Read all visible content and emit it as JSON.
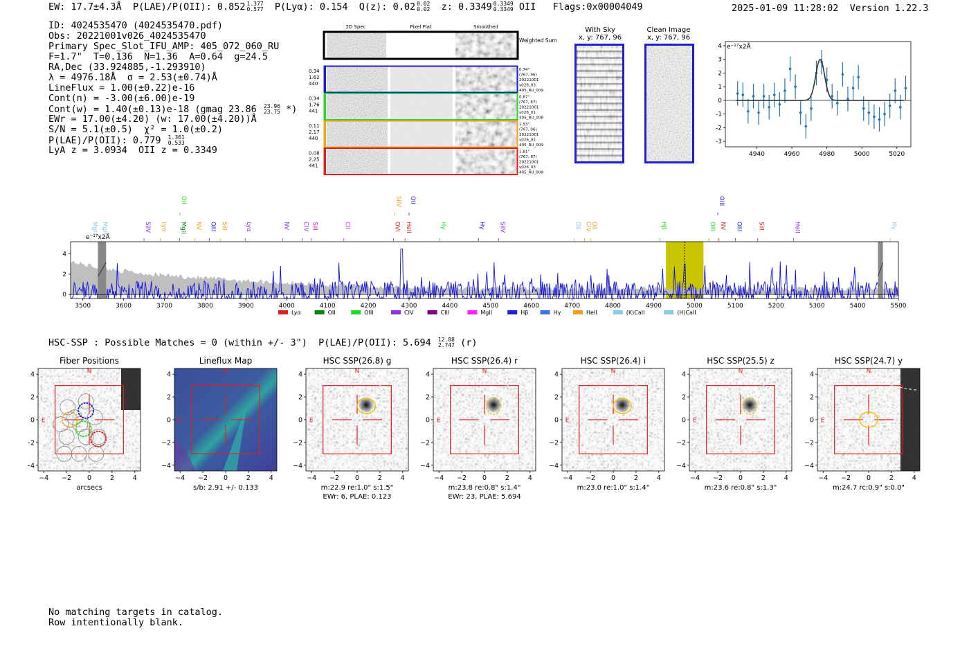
{
  "header": {
    "ew": "EW: 17.7±4.3Å",
    "plae_label": "P(LAE)/P(OII): 0.852",
    "plae_hi": "1.377",
    "plae_lo": "0.577",
    "plya": "P(Lyα): 0.154",
    "qz_label": "Q(z): 0.02",
    "qz_hi": "0.02",
    "qz_lo": "0.02",
    "z_label": "z: 0.3349",
    "z_hi": "0.3349",
    "z_lo": "0.3349",
    "z_line": "OII",
    "flags": "Flags:0x00004049",
    "datetime": "2025-01-09 11:28:02",
    "version": "Version 1.22.3"
  },
  "info": {
    "id": "ID: 4024535470 (4024535470.pdf)",
    "obs": "Obs: 20221001v026_4024535470",
    "primary": "Primary Spec_Slot_IFU_AMP: 405_072_060_RU",
    "params": "F=1.7\"  T=0.136  N=1.36  A=0.64  g=24.5",
    "radec": "RA,Dec (33.924885,-1.293910)",
    "lambda": "λ = 4976.18Å  σ = 2.53(±0.74)Å",
    "lineflux": "LineFlux = 1.00(±0.22)e-16",
    "contn": "Cont(n) = -3.00(±6.00)e-19",
    "contw": "Cont(w) = 1.40(±0.13)e-18 (gmag 23.86",
    "contw_hi": "23.96",
    "contw_lo": "23.75",
    "contw_end": "*)",
    "ewr": "EWr = 17.00(±4.20) (w: 17.00(±4.20))Å",
    "sn": "S/N = 5.1(±0.5)  χ² = 1.0(±0.2)",
    "plae": "P(LAE)/P(OII): 0.779",
    "plae_hi": "1.361",
    "plae_lo": "0.533",
    "lya_z": "LyA z = 3.0934  OII z = 0.3349"
  },
  "cutouts": {
    "col_labels": [
      "2D Spec",
      "Pixel Flat",
      "Smoothed"
    ],
    "weighted_label": "Weighted Sum",
    "rows": [
      {
        "left": [
          "0.34",
          "1.62",
          "440"
        ],
        "right": [
          "0.74\"",
          "(767, 96)",
          "20221001",
          "v026_03",
          "405_RU_009"
        ],
        "color": "#1f1fd0"
      },
      {
        "left": [
          "0.34",
          "1.76",
          "441"
        ],
        "right": [
          "0.87\"",
          "(767, 87)",
          "20221001",
          "v026_01",
          "405_RU_008"
        ],
        "color": "#2ad82a"
      },
      {
        "left": [
          "0.11",
          "2.17",
          "440"
        ],
        "right": [
          "1.53\"",
          "(767, 96)",
          "20221001",
          "v026_02",
          "405_RU_009"
        ],
        "color": "#f0a020"
      },
      {
        "left": [
          "0.08",
          "2.25",
          "441"
        ],
        "right": [
          "1.81\"",
          "(767, 87)",
          "20221001",
          "v026_03",
          "405_RU_008"
        ],
        "color": "#e02020"
      }
    ],
    "with_sky": {
      "title": "With Sky",
      "coords": "x, y: 767, 96"
    },
    "clean": {
      "title": "Clean Image",
      "coords": "x, y: 767, 96"
    }
  },
  "zoom_chart_data": {
    "type": "scatter",
    "unit_label": "e⁻¹⁷x2Å",
    "xlim": [
      4922,
      5028
    ],
    "ylim": [
      -3.4,
      4.3
    ],
    "xticks": [
      "4940",
      "4960",
      "4980",
      "5000",
      "5020"
    ],
    "yticks": [
      "4",
      "3",
      "2",
      "1",
      "0",
      "-1",
      "-2",
      "-3"
    ],
    "x": [
      4929,
      4932,
      4935,
      4938,
      4941,
      4944,
      4947,
      4950,
      4953,
      4956,
      4959,
      4962,
      4965,
      4968,
      4971,
      4974,
      4977,
      4980,
      4983,
      4986,
      4989,
      4992,
      4995,
      4998,
      5001,
      5004,
      5007,
      5010,
      5013,
      5016,
      5019,
      5022,
      5025
    ],
    "y": [
      0.5,
      0.4,
      -0.8,
      0.3,
      -0.9,
      0.3,
      -0.5,
      0.4,
      -0.3,
      0.7,
      2.3,
      1.0,
      -0.9,
      -1.9,
      -0.6,
      2.0,
      2.8,
      1.5,
      0.3,
      -0.2,
      1.9,
      0.1,
      0.9,
      1.7,
      -0.6,
      -0.9,
      -1.2,
      -1.4,
      -1.0,
      -0.4,
      0.7,
      -0.5,
      0.9
    ],
    "err": [
      0.9,
      0.9,
      0.9,
      0.9,
      0.9,
      0.9,
      0.9,
      0.9,
      0.9,
      0.9,
      0.9,
      0.9,
      0.9,
      0.9,
      0.9,
      0.9,
      0.9,
      0.9,
      0.9,
      0.9,
      0.9,
      0.9,
      0.9,
      0.9,
      0.9,
      0.9,
      0.9,
      0.9,
      0.9,
      0.9,
      0.9,
      0.9,
      0.9
    ],
    "fit": {
      "center": 4976.2,
      "sigma": 2.53,
      "amp": 3.0
    }
  },
  "spectrum_chart_data": {
    "type": "line",
    "unit_label": "e⁻¹⁷x2Å",
    "xlim": [
      3470,
      5500
    ],
    "ylim": [
      -0.4,
      5.2
    ],
    "xticks": [
      "3500",
      "3600",
      "3700",
      "3800",
      "3900",
      "4000",
      "4100",
      "4200",
      "4300",
      "4400",
      "4500",
      "4600",
      "4700",
      "4800",
      "4900",
      "5000",
      "5100",
      "5200",
      "5300",
      "5400",
      "5500"
    ],
    "yticks": [
      "4",
      "2",
      "0"
    ],
    "highlight": [
      4930,
      5022
    ],
    "line_at": 4976,
    "masked": [
      [
        3537,
        3557
      ],
      [
        5450,
        5462
      ]
    ],
    "peak_at": 4282,
    "line_labels": [
      {
        "text": "MgII",
        "w": 3520,
        "c": "#8cc8e8",
        "row": 1
      },
      {
        "text": "MgII",
        "w": 3545,
        "c": "#8cc8e8",
        "row": 1
      },
      {
        "text": "SiIV",
        "w": 3650,
        "c": "#9030e0",
        "row": 1
      },
      {
        "text": "Lyα",
        "w": 3690,
        "c": "#f0a020",
        "row": 1
      },
      {
        "text": "OII",
        "w": 3738,
        "c": "#2ad82a",
        "row": 0
      },
      {
        "text": "MgII",
        "w": 3737,
        "c": "#108010",
        "row": 1
      },
      {
        "text": "NV",
        "w": 3775,
        "c": "#f0a020",
        "row": 1
      },
      {
        "text": "OIII",
        "w": 3810,
        "c": "#1f1fd0",
        "row": 1
      },
      {
        "text": "SiII",
        "w": 3838,
        "c": "#f0a020",
        "row": 1
      },
      {
        "text": "Lyα",
        "w": 3898,
        "c": "#9030e0",
        "row": 1
      },
      {
        "text": "NV",
        "w": 3990,
        "c": "#9030e0",
        "row": 1
      },
      {
        "text": "CIV",
        "w": 4038,
        "c": "#9030e0",
        "row": 1
      },
      {
        "text": "SiII",
        "w": 4060,
        "c": "#d020d0",
        "row": 1
      },
      {
        "text": "CII",
        "w": 4140,
        "c": "#d020d0",
        "row": 1
      },
      {
        "text": "SiIV",
        "w": 4265,
        "c": "#f0a020",
        "row": 0
      },
      {
        "text": "OVI",
        "w": 4262,
        "c": "#e02020",
        "row": 1
      },
      {
        "text": "OII",
        "w": 4300,
        "c": "#1f1fd0",
        "row": 0
      },
      {
        "text": "HeII",
        "w": 4290,
        "c": "#e02020",
        "row": 1
      },
      {
        "text": "Hγ",
        "w": 4375,
        "c": "#2ad82a",
        "row": 1
      },
      {
        "text": "Hγ",
        "w": 4470,
        "c": "#1f1fd0",
        "row": 1
      },
      {
        "text": "SiIV",
        "w": 4520,
        "c": "#9030e0",
        "row": 1
      },
      {
        "text": "OII",
        "w": 4705,
        "c": "#8cc8e8",
        "row": 1
      },
      {
        "text": "CIV",
        "w": 4730,
        "c": "#f0a020",
        "row": 1
      },
      {
        "text": "OII",
        "w": 4745,
        "c": "#f0a020",
        "row": 1
      },
      {
        "text": "Hβ",
        "w": 4915,
        "c": "#2ad82a",
        "row": 1
      },
      {
        "text": "OIII",
        "w": 5035,
        "c": "#2ad82a",
        "row": 1
      },
      {
        "text": "OIII",
        "w": 5057,
        "c": "#1f1fd0",
        "row": 0
      },
      {
        "text": "NV",
        "w": 5060,
        "c": "#e02020",
        "row": 1
      },
      {
        "text": "OIII",
        "w": 5100,
        "c": "#1f1fd0",
        "row": 1
      },
      {
        "text": "SiII",
        "w": 5155,
        "c": "#e02020",
        "row": 1
      },
      {
        "text": "HeII",
        "w": 5243,
        "c": "#9030e0",
        "row": 1
      },
      {
        "text": "Hγ",
        "w": 5480,
        "c": "#8cc8e8",
        "row": 1
      }
    ],
    "legend": [
      {
        "name": "Lyα",
        "c": "#e02020"
      },
      {
        "name": "OII",
        "c": "#108010"
      },
      {
        "name": "OIII",
        "c": "#2ad82a"
      },
      {
        "name": "CIV",
        "c": "#9030e0"
      },
      {
        "name": "CIII",
        "c": "#800080"
      },
      {
        "name": "MgII",
        "c": "#ff20ff"
      },
      {
        "name": "Hβ",
        "c": "#1f1fd0"
      },
      {
        "name": "Hγ",
        "c": "#4070e0"
      },
      {
        "name": "HeII",
        "c": "#f0a020"
      },
      {
        "name": "(K)CaII",
        "c": "#8cc8e8"
      },
      {
        "name": "(H)CaII",
        "c": "#8cc8e8"
      }
    ]
  },
  "hsc": {
    "title": "HSC-SSP : Possible Matches = 0 (within +/- 3\")",
    "plae": "P(LAE)/P(OII): 5.694",
    "plae_hi": "12.88",
    "plae_lo": "2.747",
    "plae_band": "(r)",
    "axis_ticks_x": [
      "−4",
      "−2",
      "0",
      "2",
      "4"
    ],
    "axis_ticks_y": [
      "4",
      "2",
      "0",
      "−2",
      "−4"
    ],
    "north": "N",
    "east": "E",
    "panels": [
      {
        "title": "Fiber Positions",
        "cap1": "arcsecs",
        "cap2": ""
      },
      {
        "title": "Lineflux Map",
        "cap1": "s/b: 2.91 +/- 0.133",
        "cap2": ""
      },
      {
        "title": "HSC SSP(26.8) g",
        "cap1": "m:22.9  re:1.0\"  s:1.5\"",
        "cap2": "EWr: 6, PLAE: 0.123"
      },
      {
        "title": "HSC SSP(26.4) r",
        "cap1": "m:23.8  re:0.8\"  s:1.4\"",
        "cap2": "EWr: 23, PLAE: 5.694"
      },
      {
        "title": "HSC SSP(26.4) i",
        "cap1": "m:23.0  re:1.0\"  s:1.4\"",
        "cap2": ""
      },
      {
        "title": "HSC SSP(25.5) z",
        "cap1": "m:23.6  re:0.8\"  s:1.3\"",
        "cap2": ""
      },
      {
        "title": "HSC SSP(24.7) y",
        "cap1": "m:24.7  rc:0.9\"  s:0.0\"",
        "cap2": ""
      }
    ]
  },
  "footer": {
    "line1": "No matching targets in catalog.",
    "line2": "Row intentionally blank."
  }
}
